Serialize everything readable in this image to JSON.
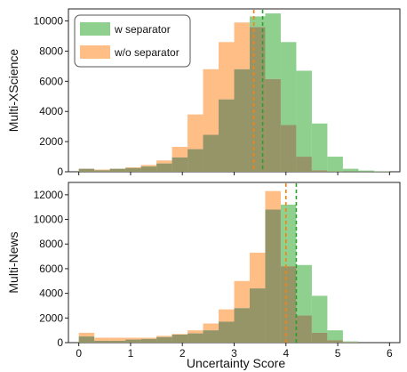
{
  "chart_data": [
    {
      "type": "histogram",
      "ylabel": "Multi-XScience",
      "xlim": [
        -0.2,
        6.2
      ],
      "ylim": [
        0,
        10800
      ],
      "yticks": [
        0,
        2000,
        4000,
        6000,
        8000,
        10000
      ],
      "bins": [
        0,
        0.3,
        0.6,
        0.9,
        1.2,
        1.5,
        1.8,
        2.1,
        2.4,
        2.7,
        3.0,
        3.3,
        3.6,
        3.9,
        4.2,
        4.5,
        4.8,
        5.1,
        5.4,
        5.7,
        6.0
      ],
      "series": [
        {
          "name": "w separator",
          "color": "#8fd08f",
          "values": [
            200,
            100,
            200,
            250,
            350,
            550,
            950,
            1500,
            2450,
            4800,
            6800,
            10300,
            10500,
            8600,
            6700,
            3200,
            1000,
            200,
            80,
            30
          ],
          "mean": 3.55,
          "mean_color": "#2ca02c"
        },
        {
          "name": "w/o separator",
          "color": "#ffbe86",
          "values": [
            200,
            150,
            200,
            300,
            450,
            750,
            1650,
            3800,
            6800,
            8600,
            9900,
            9600,
            6150,
            3100,
            1000,
            100,
            30,
            20,
            10,
            10
          ],
          "mean": 3.38,
          "mean_color": "#ff7f0e"
        }
      ],
      "legend": {
        "position": "top-left"
      }
    },
    {
      "type": "histogram",
      "ylabel": "Multi-News",
      "xlabel": "Uncertainty Score",
      "xlim": [
        -0.2,
        6.2
      ],
      "ylim": [
        0,
        13000
      ],
      "yticks": [
        0,
        2000,
        4000,
        6000,
        8000,
        10000,
        12000
      ],
      "xticks": [
        0,
        1,
        2,
        3,
        4,
        5,
        6
      ],
      "bins": [
        0,
        0.3,
        0.6,
        0.9,
        1.2,
        1.5,
        1.8,
        2.1,
        2.4,
        2.7,
        3.0,
        3.3,
        3.6,
        3.9,
        4.2,
        4.5,
        4.8,
        5.1,
        5.4,
        5.7,
        6.0
      ],
      "series": [
        {
          "name": "w separator",
          "color": "#8fd08f",
          "values": [
            500,
            150,
            150,
            250,
            300,
            450,
            650,
            750,
            1000,
            1700,
            2800,
            4400,
            10800,
            11200,
            6300,
            3800,
            1000,
            100,
            0,
            0
          ],
          "mean": 4.2,
          "mean_color": "#2ca02c"
        },
        {
          "name": "w/o separator",
          "color": "#ffbe86",
          "values": [
            800,
            400,
            400,
            400,
            400,
            550,
            700,
            1000,
            1550,
            2700,
            5000,
            7300,
            12300,
            6200,
            2200,
            800,
            200,
            50,
            0,
            0
          ],
          "mean": 4.0,
          "mean_color": "#ff7f0e"
        }
      ]
    }
  ],
  "legend": {
    "items": [
      {
        "label": "w separator",
        "color": "#8fd08f"
      },
      {
        "label": "w/o separator",
        "color": "#ffbe86"
      }
    ]
  }
}
